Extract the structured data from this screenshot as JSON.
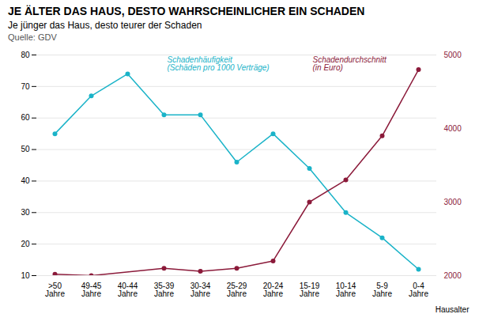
{
  "chart_data": {
    "type": "line",
    "title": "JE ÄLTER DAS HAUS, DESTO WAHRSCHEINLICHER EIN SCHADEN",
    "subtitle": "Je jünger das Haus, desto teurer der Schaden",
    "source": "Quelle: GDV",
    "xlabel": "Hausalter",
    "categories": [
      ">50\nJahre",
      "49-45\nJahre",
      "40-44\nJahre",
      "35-39\nJahre",
      "30-34\nJahre",
      "25-29\nJahre",
      "20-24\nJahre",
      "15-19\nJahre",
      "10-14\nJahre",
      "5-9\nJahre",
      "0-4\nJahre"
    ],
    "series": [
      {
        "name": "Schadenhäufigkeit\n(Schäden pro 1000 Verträge)",
        "color": "#1ab3c8",
        "values": [
          55,
          67,
          74,
          61,
          61,
          46,
          55,
          44,
          30,
          22,
          12
        ]
      },
      {
        "name": "Schadendurchschnitt\n(in Euro)",
        "color": "#8B1A3A",
        "axis": "y2",
        "values": [
          2020,
          2000,
          null,
          2100,
          2060,
          2100,
          2200,
          3000,
          3300,
          3900,
          4800
        ]
      }
    ],
    "ylim": [
      10,
      80
    ],
    "yticks": [
      10,
      20,
      30,
      40,
      50,
      60,
      70,
      80
    ],
    "y2lim": [
      2000,
      5000
    ],
    "y2ticks": [
      2000,
      3000,
      4000,
      5000
    ],
    "grid": true,
    "marker": "circle"
  }
}
